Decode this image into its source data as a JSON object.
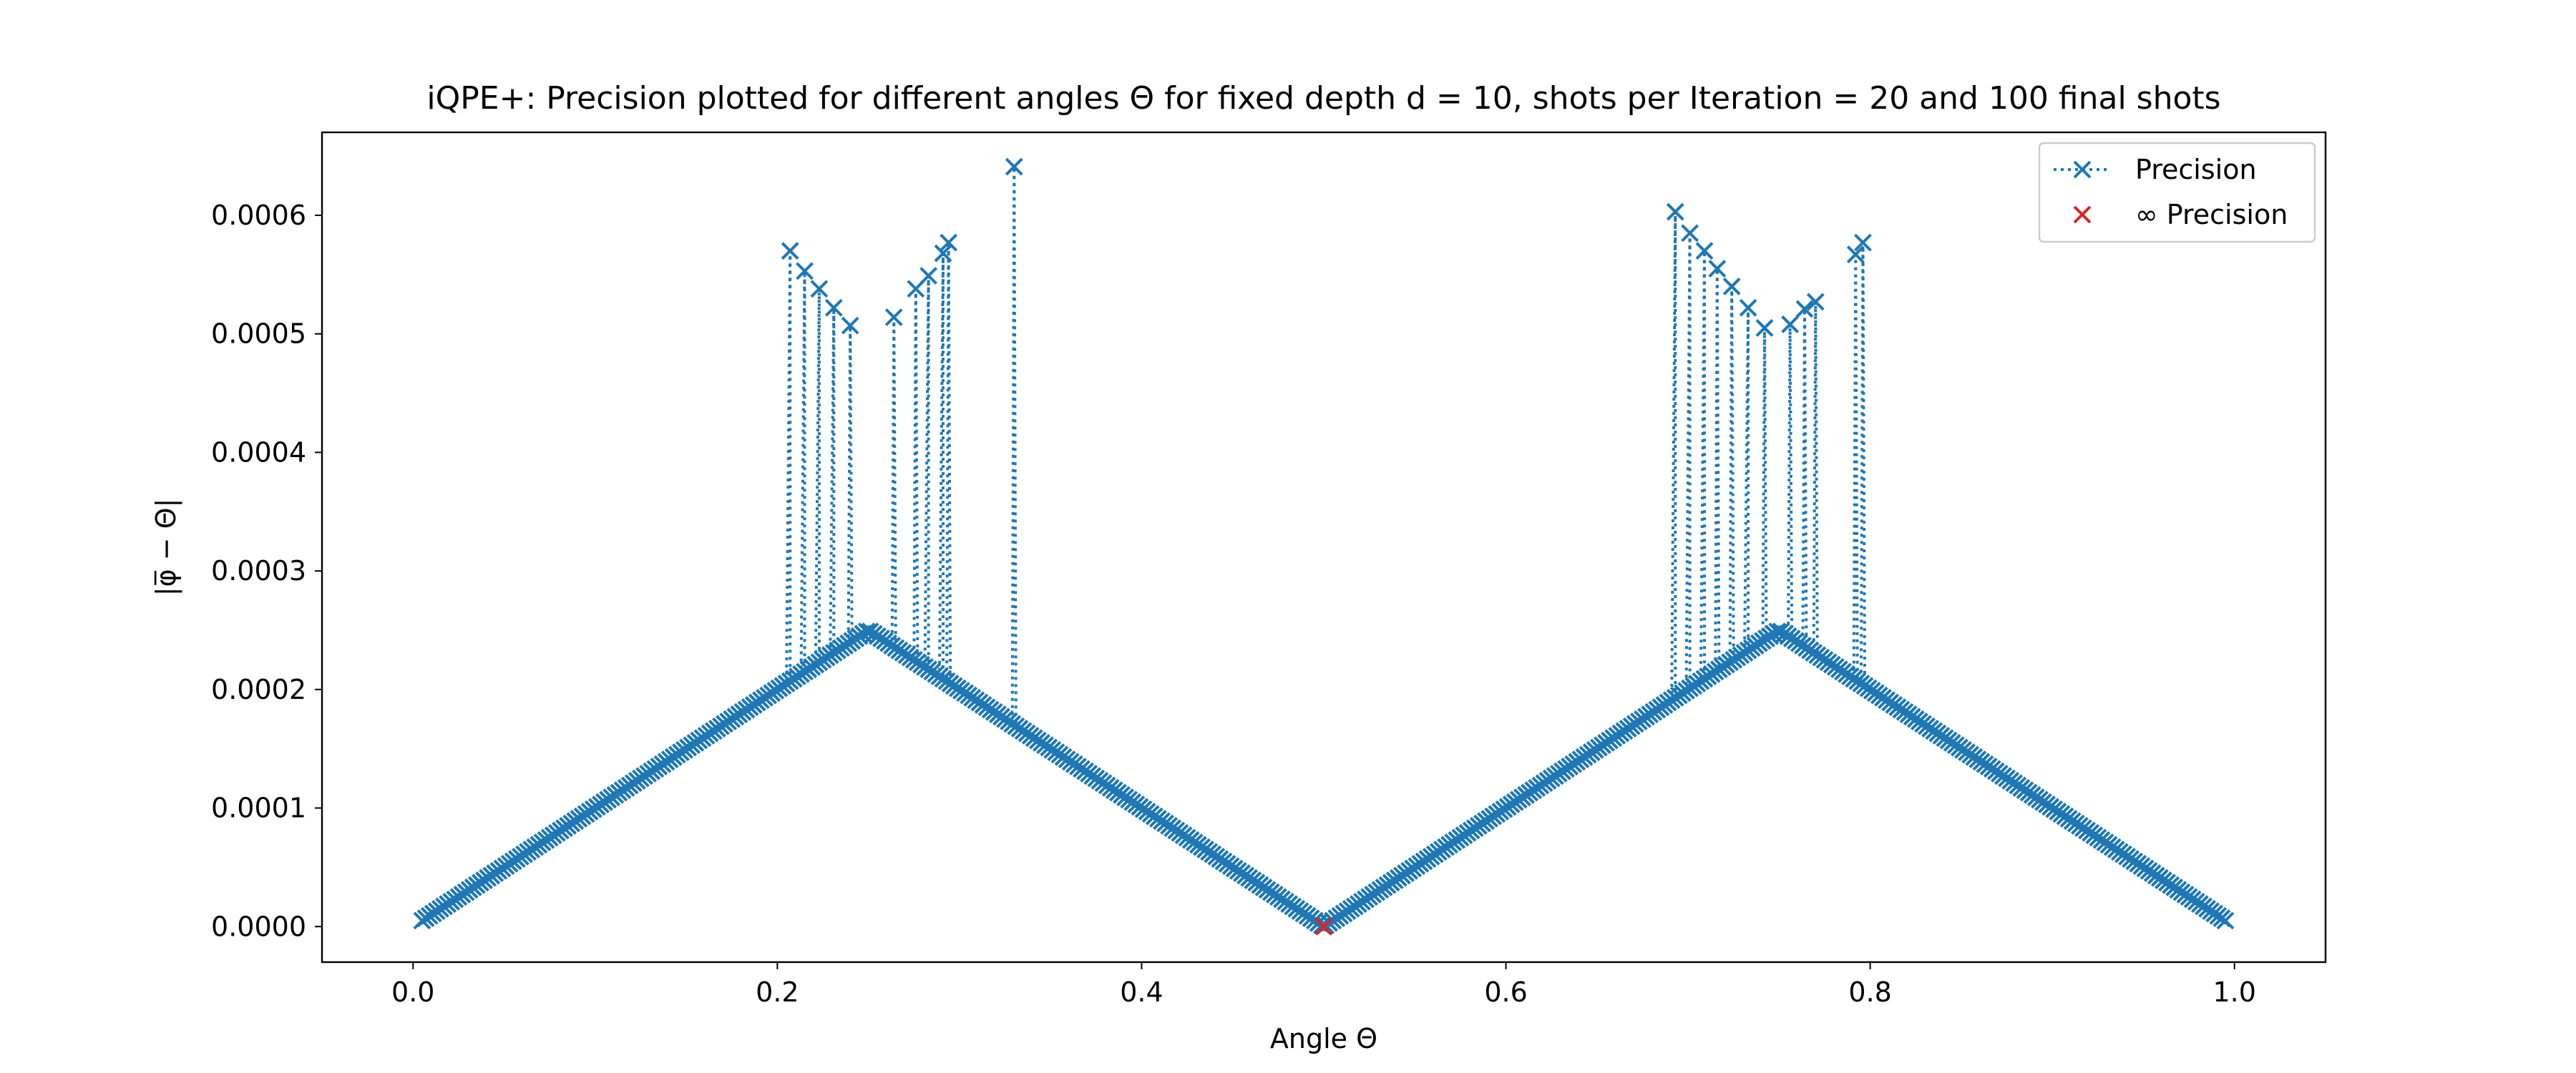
{
  "chart_data": {
    "type": "scatter",
    "title": "iQPE+: Precision plotted for different angles Θ for fixed depth d = 10, shots per Iteration = 20 and 100 final shots",
    "xlabel": "Angle Θ",
    "ylabel": "|φ̅ − Θ|",
    "xlim": [
      -0.05,
      1.05
    ],
    "ylim": [
      -3e-05,
      0.00067
    ],
    "xticks": [
      0.0,
      0.2,
      0.4,
      0.6,
      0.8,
      1.0
    ],
    "xtick_labels": [
      "0.0",
      "0.2",
      "0.4",
      "0.6",
      "0.8",
      "1.0"
    ],
    "yticks": [
      0.0,
      0.0001,
      0.0002,
      0.0003,
      0.0004,
      0.0005,
      0.0006
    ],
    "ytick_labels": [
      "0.0000",
      "0.0001",
      "0.0002",
      "0.0003",
      "0.0004",
      "0.0005",
      "0.0006"
    ],
    "grid": false,
    "legend_position": "top-right",
    "series": [
      {
        "name": "Precision",
        "color": "#1f77b4",
        "marker": "x",
        "linestyle": "dotted",
        "sampling": {
          "start": 0.005,
          "end": 0.995,
          "step": 0.002
        },
        "baseline_rule": "|phi - Theta| = 0.001 * distance from Theta to the nearest multiple of 0.5 (rises 0 -> 0.0005 -> 0 with period 0.5)",
        "outliers": [
          {
            "x": 0.207,
            "y": 0.00057
          },
          {
            "x": 0.215,
            "y": 0.000553
          },
          {
            "x": 0.223,
            "y": 0.000538
          },
          {
            "x": 0.231,
            "y": 0.000522
          },
          {
            "x": 0.24,
            "y": 0.000507
          },
          {
            "x": 0.264,
            "y": 0.000514
          },
          {
            "x": 0.276,
            "y": 0.000538
          },
          {
            "x": 0.283,
            "y": 0.000549
          },
          {
            "x": 0.291,
            "y": 0.000568
          },
          {
            "x": 0.294,
            "y": 0.000577
          },
          {
            "x": 0.33,
            "y": 0.000641
          },
          {
            "x": 0.693,
            "y": 0.000603
          },
          {
            "x": 0.701,
            "y": 0.000585
          },
          {
            "x": 0.709,
            "y": 0.00057
          },
          {
            "x": 0.716,
            "y": 0.000555
          },
          {
            "x": 0.724,
            "y": 0.00054
          },
          {
            "x": 0.733,
            "y": 0.000522
          },
          {
            "x": 0.742,
            "y": 0.000505
          },
          {
            "x": 0.756,
            "y": 0.000508
          },
          {
            "x": 0.764,
            "y": 0.000521
          },
          {
            "x": 0.77,
            "y": 0.000527
          },
          {
            "x": 0.792,
            "y": 0.000567
          },
          {
            "x": 0.796,
            "y": 0.000577
          }
        ]
      },
      {
        "name": "∞ Precision",
        "color": "#d62728",
        "marker": "x",
        "linestyle": "none",
        "points": [
          {
            "x": 0.5,
            "y": 0.0
          }
        ]
      }
    ]
  }
}
